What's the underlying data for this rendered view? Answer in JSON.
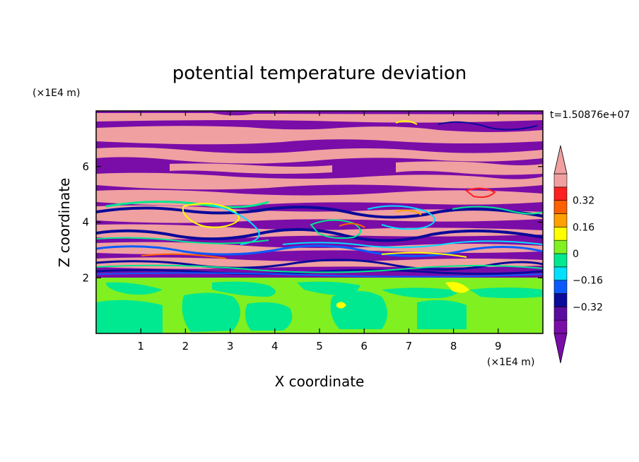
{
  "chart_data": {
    "type": "heatmap",
    "title": "potential temperature deviation",
    "xlabel": "X coordinate",
    "ylabel": "Z coordinate",
    "x_unit_label": "(×1E4 m)",
    "y_unit_label": "(×1E4 m)",
    "time_label": "t=1.50876e+07",
    "xlim": [
      0,
      10
    ],
    "ylim": [
      0,
      8
    ],
    "x_ticks": [
      1,
      2,
      3,
      4,
      5,
      6,
      7,
      8,
      9
    ],
    "y_ticks": [
      2,
      4,
      6
    ],
    "colorbar": {
      "levels": [
        -0.48,
        -0.4,
        -0.32,
        -0.24,
        -0.16,
        -0.08,
        0,
        0.08,
        0.16,
        0.24,
        0.32,
        0.4,
        0.48
      ],
      "labels": [
        "0.32",
        "0.16",
        "0",
        "−0.16",
        "−0.32"
      ],
      "label_values": [
        0.32,
        0.16,
        0,
        -0.16,
        -0.32
      ],
      "colors": [
        "#7a0ca8",
        "#5a0ca0",
        "#0a0a9a",
        "#0a5aff",
        "#00e0ff",
        "#00e890",
        "#80f020",
        "#ffff00",
        "#ffa000",
        "#ff6000",
        "#ff2020",
        "#f0a0a0"
      ],
      "extend": "both"
    },
    "regions": [
      {
        "z_range": [
          0,
          2
        ],
        "dominant_values": [
          0.0,
          0.04
        ]
      },
      {
        "z_range": [
          2,
          4.5
        ],
        "dominant_values": [
          -0.48,
          0.48,
          -0.32,
          0.0
        ]
      },
      {
        "z_range": [
          4.5,
          8
        ],
        "dominant_values": [
          0.48,
          -0.48
        ]
      }
    ]
  }
}
